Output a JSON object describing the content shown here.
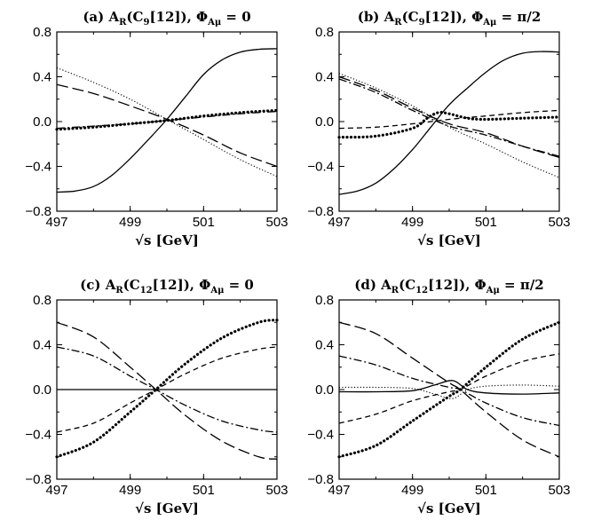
{
  "chart_data": [
    {
      "panel": "a",
      "type": "line",
      "title": {
        "prefix": "(a)  A",
        "sub1": "R",
        "mid": "(C",
        "sub2": "9",
        "rest": "[12]),  Φ",
        "sub3": "Aμ",
        "tail": " = 0"
      },
      "xlabel": "√s [GeV]",
      "xlim": [
        497,
        503
      ],
      "ylim": [
        -0.8,
        0.8
      ],
      "xticks": [
        497,
        499,
        501,
        503
      ],
      "xtick_labels": [
        "497",
        "499",
        "501",
        "503"
      ],
      "yticks": [
        -0.8,
        -0.4,
        0.0,
        0.4,
        0.8
      ],
      "ytick_labels": [
        "−0.8",
        "−0.4",
        "0.0",
        "0.4",
        "0.8"
      ],
      "series": [
        {
          "style": "solid",
          "x": [
            497,
            497.5,
            498,
            498.5,
            499,
            499.5,
            500,
            500.5,
            501,
            501.5,
            502,
            502.5,
            503
          ],
          "y": [
            -0.63,
            -0.62,
            -0.58,
            -0.48,
            -0.33,
            -0.16,
            0.02,
            0.22,
            0.42,
            0.55,
            0.62,
            0.645,
            0.65
          ]
        },
        {
          "style": "dotted",
          "x": [
            497,
            498,
            499,
            500,
            501,
            502,
            503
          ],
          "y": [
            0.48,
            0.35,
            0.2,
            0.02,
            -0.16,
            -0.34,
            -0.49
          ]
        },
        {
          "style": "long-dash",
          "x": [
            497,
            498,
            499,
            500,
            501,
            502,
            503
          ],
          "y": [
            0.33,
            0.25,
            0.14,
            0.02,
            -0.12,
            -0.28,
            -0.4
          ]
        },
        {
          "style": "thick-dot",
          "x": [
            497,
            498,
            499,
            500,
            501,
            502,
            503
          ],
          "y": [
            -0.07,
            -0.05,
            -0.02,
            0.01,
            0.05,
            0.08,
            0.1
          ]
        },
        {
          "style": "dash-dot",
          "x": [
            497,
            498,
            499,
            500,
            501,
            502,
            503
          ],
          "y": [
            -0.06,
            -0.04,
            -0.02,
            0.01,
            0.04,
            0.07,
            0.09
          ]
        }
      ]
    },
    {
      "panel": "b",
      "type": "line",
      "title": {
        "prefix": "(b)  A",
        "sub1": "R",
        "mid": "(C",
        "sub2": "9",
        "rest": "[12]),  Φ",
        "sub3": "Aμ",
        "tail": " = π/2"
      },
      "xlabel": "√s [GeV]",
      "xlim": [
        497,
        503
      ],
      "ylim": [
        -0.8,
        0.8
      ],
      "xticks": [
        497,
        499,
        501,
        503
      ],
      "xtick_labels": [
        "497",
        "499",
        "501",
        "503"
      ],
      "yticks": [
        -0.8,
        -0.4,
        0.0,
        0.4,
        0.8
      ],
      "ytick_labels": [
        "−0.8",
        "−0.4",
        "0.0",
        "0.4",
        "0.8"
      ],
      "series": [
        {
          "style": "solid",
          "x": [
            497,
            497.5,
            498,
            498.5,
            499,
            499.5,
            500,
            500.5,
            501,
            501.5,
            502,
            502.5,
            503
          ],
          "y": [
            -0.65,
            -0.62,
            -0.55,
            -0.42,
            -0.25,
            -0.05,
            0.15,
            0.3,
            0.44,
            0.55,
            0.61,
            0.625,
            0.62
          ]
        },
        {
          "style": "dotted",
          "x": [
            497,
            498,
            499,
            500,
            501,
            502,
            503
          ],
          "y": [
            0.43,
            0.3,
            0.14,
            -0.05,
            -0.2,
            -0.36,
            -0.5
          ]
        },
        {
          "style": "long-dash",
          "x": [
            497,
            498,
            499,
            500,
            501,
            502,
            503
          ],
          "y": [
            0.4,
            0.28,
            0.12,
            -0.02,
            -0.1,
            -0.22,
            -0.32
          ]
        },
        {
          "style": "dash-dot",
          "x": [
            497,
            498,
            499,
            500,
            501,
            502,
            503
          ],
          "y": [
            0.38,
            0.26,
            0.1,
            -0.04,
            -0.12,
            -0.22,
            -0.31
          ]
        },
        {
          "style": "short-dash",
          "x": [
            497,
            498,
            499,
            500,
            501,
            502,
            503
          ],
          "y": [
            -0.06,
            -0.05,
            -0.02,
            0.02,
            0.05,
            0.08,
            0.1
          ]
        },
        {
          "style": "thick-dot",
          "x": [
            497,
            498,
            499,
            499.4,
            499.7,
            500,
            500.5,
            501,
            502,
            503
          ],
          "y": [
            -0.14,
            -0.13,
            -0.06,
            0.03,
            0.08,
            0.07,
            0.03,
            0.02,
            0.03,
            0.04
          ]
        }
      ]
    },
    {
      "panel": "c",
      "type": "line",
      "title": {
        "prefix": "(c)  A",
        "sub1": "R",
        "mid": "(C",
        "sub2": "12",
        "rest": "[12]),  Φ",
        "sub3": "Aμ",
        "tail": " = 0"
      },
      "xlabel": "√s [GeV]",
      "xlim": [
        497,
        503
      ],
      "ylim": [
        -0.8,
        0.8
      ],
      "xticks": [
        497,
        499,
        501,
        503
      ],
      "xtick_labels": [
        "497",
        "499",
        "501",
        "503"
      ],
      "yticks": [
        -0.8,
        -0.4,
        0.0,
        0.4,
        0.8
      ],
      "ytick_labels": [
        "−0.8",
        "−0.4",
        "0.0",
        "0.4",
        "0.8"
      ],
      "series": [
        {
          "style": "solid",
          "x": [
            497,
            503
          ],
          "y": [
            0,
            0
          ]
        },
        {
          "style": "long-dash",
          "x": [
            497,
            498,
            499,
            499.7,
            500.5,
            501.5,
            502.5,
            503
          ],
          "y": [
            0.6,
            0.47,
            0.2,
            0.0,
            -0.23,
            -0.46,
            -0.6,
            -0.62
          ]
        },
        {
          "style": "dash-dot",
          "x": [
            497,
            498,
            499,
            499.7,
            500.5,
            501.5,
            502.5,
            503
          ],
          "y": [
            0.38,
            0.3,
            0.12,
            0.0,
            -0.14,
            -0.28,
            -0.36,
            -0.38
          ]
        },
        {
          "style": "short-dash",
          "x": [
            497,
            498,
            499,
            499.7,
            500.5,
            501.5,
            502.5,
            503
          ],
          "y": [
            -0.38,
            -0.3,
            -0.12,
            0.0,
            0.14,
            0.28,
            0.36,
            0.38
          ]
        },
        {
          "style": "thick-dot",
          "x": [
            497,
            498,
            499,
            499.7,
            500.5,
            501.5,
            502.5,
            503
          ],
          "y": [
            -0.6,
            -0.47,
            -0.2,
            0.0,
            0.23,
            0.46,
            0.6,
            0.62
          ]
        }
      ]
    },
    {
      "panel": "d",
      "type": "line",
      "title": {
        "prefix": "(d)  A",
        "sub1": "R",
        "mid": "(C",
        "sub2": "12",
        "rest": "[12]),  Φ",
        "sub3": "Aμ",
        "tail": " = π/2"
      },
      "xlabel": "√s [GeV]",
      "xlim": [
        497,
        503
      ],
      "ylim": [
        -0.8,
        0.8
      ],
      "xticks": [
        497,
        499,
        501,
        503
      ],
      "xtick_labels": [
        "497",
        "499",
        "501",
        "503"
      ],
      "yticks": [
        -0.8,
        -0.4,
        0.0,
        0.4,
        0.8
      ],
      "ytick_labels": [
        "−0.8",
        "−0.4",
        "0.0",
        "0.4",
        "0.8"
      ],
      "series": [
        {
          "style": "long-dash",
          "x": [
            497,
            498,
            499,
            500,
            500.3,
            501,
            502,
            503
          ],
          "y": [
            0.6,
            0.5,
            0.28,
            0.06,
            0.0,
            -0.2,
            -0.45,
            -0.6
          ]
        },
        {
          "style": "dash-dot",
          "x": [
            497,
            498,
            499,
            500,
            500.3,
            501,
            502,
            503
          ],
          "y": [
            0.3,
            0.22,
            0.1,
            0.02,
            0.0,
            -0.12,
            -0.25,
            -0.32
          ]
        },
        {
          "style": "short-dash",
          "x": [
            497,
            498,
            499,
            500,
            500.3,
            501,
            502,
            503
          ],
          "y": [
            -0.3,
            -0.22,
            -0.1,
            -0.02,
            0.0,
            0.12,
            0.25,
            0.32
          ]
        },
        {
          "style": "thick-dot",
          "x": [
            497,
            498,
            499,
            500,
            500.3,
            501,
            502,
            503
          ],
          "y": [
            -0.6,
            -0.5,
            -0.28,
            -0.06,
            0.0,
            0.2,
            0.45,
            0.6
          ]
        },
        {
          "style": "solid",
          "x": [
            497,
            498,
            499,
            499.6,
            500.1,
            500.5,
            501,
            502,
            503
          ],
          "y": [
            -0.02,
            -0.02,
            -0.01,
            0.04,
            0.08,
            0.0,
            -0.03,
            -0.04,
            -0.03
          ]
        },
        {
          "style": "dotted",
          "x": [
            497,
            498,
            499,
            499.6,
            500.1,
            500.5,
            501,
            502,
            503
          ],
          "y": [
            0.02,
            0.02,
            0.01,
            -0.04,
            -0.08,
            0.0,
            0.03,
            0.04,
            0.03
          ]
        }
      ]
    }
  ]
}
